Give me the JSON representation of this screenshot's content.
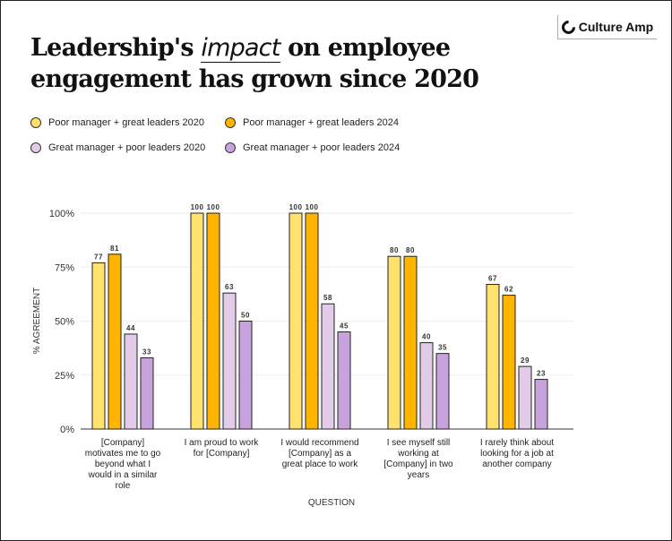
{
  "brand": {
    "name": "Culture Amp"
  },
  "title": {
    "before": "Leadership's ",
    "highlight": "impact",
    "after": " on employee",
    "line2": "engagement has grown since 2020"
  },
  "chart_data": {
    "type": "bar",
    "xlabel": "QUESTION",
    "ylabel": "% AGREEMENT",
    "ylim": [
      0,
      100
    ],
    "yticks": [
      0,
      25,
      50,
      75,
      100
    ],
    "ytick_labels": [
      "0%",
      "25%",
      "50%",
      "75%",
      "100%"
    ],
    "grid": true,
    "legend_placement": "top-left",
    "categories": [
      [
        "[Company]",
        "motivates me to go",
        "beyond what I",
        "would in a similar",
        "role"
      ],
      [
        "I am proud to work",
        "for [Company]"
      ],
      [
        "I would recommend",
        "[Company] as a",
        "great place to work"
      ],
      [
        "I see myself still",
        "working at",
        "[Company] in two",
        "years"
      ],
      [
        "I rarely think about",
        "looking for a job at",
        "another company"
      ]
    ],
    "series": [
      {
        "name": "Poor manager + great leaders 2020",
        "color": "#FFE26E",
        "values": [
          77,
          100,
          100,
          80,
          67
        ]
      },
      {
        "name": "Poor manager + great leaders 2024",
        "color": "#FFB400",
        "values": [
          81,
          100,
          100,
          80,
          62
        ]
      },
      {
        "name": "Great manager + poor leaders 2020",
        "color": "#E3CCEA",
        "values": [
          44,
          63,
          58,
          40,
          29
        ]
      },
      {
        "name": "Great manager + poor leaders 2024",
        "color": "#C8A2DC",
        "values": [
          33,
          50,
          45,
          35,
          23
        ]
      }
    ]
  }
}
